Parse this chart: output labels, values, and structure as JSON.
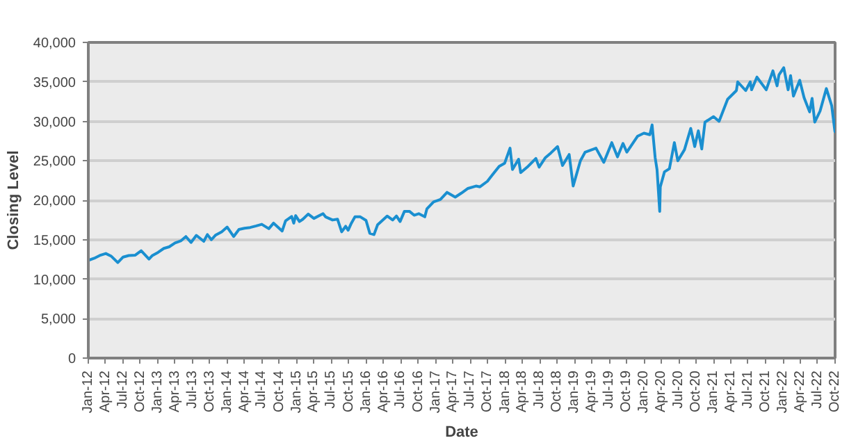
{
  "chart_data": {
    "type": "line",
    "xlabel": "Date",
    "ylabel": "Closing Level",
    "grid": "y",
    "marker": "none",
    "line_style": "solid",
    "xlim": [
      "2012-01-01",
      "2022-10-01"
    ],
    "ylim": [
      0,
      40000
    ],
    "yticks": [
      0,
      {
        "value": 5000,
        "label": "5,000"
      },
      {
        "value": 10000,
        "label": "10,000"
      },
      {
        "value": 15000,
        "label": "15,000"
      },
      {
        "value": 20000,
        "label": "20,000"
      },
      {
        "value": 25000,
        "label": "25,000"
      },
      {
        "value": 30000,
        "label": "30,000"
      },
      {
        "value": 35000,
        "label": "35,000"
      },
      {
        "value": 40000,
        "label": "40,000"
      }
    ],
    "xticks": [
      {
        "value": "2012-01-01",
        "label": "Jan-12"
      },
      {
        "value": "2012-04-01",
        "label": "Apr-12"
      },
      {
        "value": "2012-07-01",
        "label": "Jul-12"
      },
      {
        "value": "2012-10-01",
        "label": "Oct-12"
      },
      {
        "value": "2013-01-01",
        "label": "Jan-13"
      },
      {
        "value": "2013-04-01",
        "label": "Apr-13"
      },
      {
        "value": "2013-07-01",
        "label": "Jul-13"
      },
      {
        "value": "2013-10-01",
        "label": "Oct-13"
      },
      {
        "value": "2014-01-01",
        "label": "Jan-14"
      },
      {
        "value": "2014-04-01",
        "label": "Apr-14"
      },
      {
        "value": "2014-07-01",
        "label": "Jul-14"
      },
      {
        "value": "2014-10-01",
        "label": "Oct-14"
      },
      {
        "value": "2015-01-01",
        "label": "Jan-15"
      },
      {
        "value": "2015-04-01",
        "label": "Apr-15"
      },
      {
        "value": "2015-07-01",
        "label": "Jul-15"
      },
      {
        "value": "2015-10-01",
        "label": "Oct-15"
      },
      {
        "value": "2016-01-01",
        "label": "Jan-16"
      },
      {
        "value": "2016-04-01",
        "label": "Apr-16"
      },
      {
        "value": "2016-07-01",
        "label": "Jul-16"
      },
      {
        "value": "2016-10-01",
        "label": "Oct-16"
      },
      {
        "value": "2017-01-01",
        "label": "Jan-17"
      },
      {
        "value": "2017-04-01",
        "label": "Apr-17"
      },
      {
        "value": "2017-07-01",
        "label": "Jul-17"
      },
      {
        "value": "2017-10-01",
        "label": "Oct-17"
      },
      {
        "value": "2018-01-01",
        "label": "Jan-18"
      },
      {
        "value": "2018-04-01",
        "label": "Apr-18"
      },
      {
        "value": "2018-07-01",
        "label": "Jul-18"
      },
      {
        "value": "2018-10-01",
        "label": "Oct-18"
      },
      {
        "value": "2019-01-01",
        "label": "Jan-19"
      },
      {
        "value": "2019-04-01",
        "label": "Apr-19"
      },
      {
        "value": "2019-07-01",
        "label": "Jul-19"
      },
      {
        "value": "2019-10-01",
        "label": "Oct-19"
      },
      {
        "value": "2020-01-01",
        "label": "Jan-20"
      },
      {
        "value": "2020-04-01",
        "label": "Apr-20"
      },
      {
        "value": "2020-07-01",
        "label": "Jul-20"
      },
      {
        "value": "2020-10-01",
        "label": "Oct-20"
      },
      {
        "value": "2021-01-01",
        "label": "Jan-21"
      },
      {
        "value": "2021-04-01",
        "label": "Apr-21"
      },
      {
        "value": "2021-07-01",
        "label": "Jul-21"
      },
      {
        "value": "2021-10-01",
        "label": "Oct-21"
      },
      {
        "value": "2022-01-01",
        "label": "Jan-22"
      },
      {
        "value": "2022-04-01",
        "label": "Apr-22"
      },
      {
        "value": "2022-07-01",
        "label": "Jul-22"
      },
      {
        "value": "2022-10-01",
        "label": "Oct-22"
      }
    ],
    "series": [
      {
        "color": "#1a8fd0",
        "x": [
          "2012-01-03",
          "2012-02-01",
          "2012-03-01",
          "2012-04-02",
          "2012-05-01",
          "2012-06-04",
          "2012-07-02",
          "2012-08-01",
          "2012-09-04",
          "2012-10-05",
          "2012-11-15",
          "2012-12-03",
          "2013-01-02",
          "2013-02-01",
          "2013-03-01",
          "2013-04-01",
          "2013-05-01",
          "2013-05-28",
          "2013-06-24",
          "2013-07-22",
          "2013-08-30",
          "2013-09-18",
          "2013-10-09",
          "2013-11-01",
          "2013-12-02",
          "2013-12-31",
          "2014-02-03",
          "2014-03-03",
          "2014-04-01",
          "2014-05-01",
          "2014-06-02",
          "2014-07-01",
          "2014-08-07",
          "2014-09-01",
          "2014-10-16",
          "2014-11-03",
          "2014-12-05",
          "2014-12-16",
          "2014-12-26",
          "2015-01-15",
          "2015-02-02",
          "2015-03-02",
          "2015-04-01",
          "2015-05-19",
          "2015-06-01",
          "2015-07-08",
          "2015-08-03",
          "2015-08-25",
          "2015-09-15",
          "2015-09-28",
          "2015-10-15",
          "2015-11-03",
          "2015-12-01",
          "2015-12-31",
          "2016-01-20",
          "2016-02-11",
          "2016-03-01",
          "2016-04-20",
          "2016-05-19",
          "2016-06-08",
          "2016-06-27",
          "2016-07-20",
          "2016-08-15",
          "2016-09-09",
          "2016-10-03",
          "2016-11-04",
          "2016-11-15",
          "2016-12-20",
          "2017-01-25",
          "2017-03-01",
          "2017-04-13",
          "2017-05-15",
          "2017-06-19",
          "2017-07-31",
          "2017-08-21",
          "2017-09-29",
          "2017-10-31",
          "2017-11-30",
          "2017-12-29",
          "2018-01-26",
          "2018-02-08",
          "2018-03-12",
          "2018-03-23",
          "2018-05-01",
          "2018-06-11",
          "2018-06-28",
          "2018-07-31",
          "2018-08-29",
          "2018-10-03",
          "2018-10-29",
          "2018-12-03",
          "2018-12-24",
          "2019-01-31",
          "2019-02-25",
          "2019-04-23",
          "2019-06-03",
          "2019-07-15",
          "2019-08-14",
          "2019-09-12",
          "2019-10-02",
          "2019-11-27",
          "2019-12-31",
          "2020-01-31",
          "2020-02-12",
          "2020-02-28",
          "2020-03-09",
          "2020-03-23",
          "2020-03-26",
          "2020-04-17",
          "2020-05-13",
          "2020-06-08",
          "2020-06-26",
          "2020-07-31",
          "2020-09-02",
          "2020-09-23",
          "2020-10-12",
          "2020-10-30",
          "2020-11-16",
          "2020-12-31",
          "2021-01-29",
          "2021-03-15",
          "2021-04-30",
          "2021-05-07",
          "2021-06-18",
          "2021-07-12",
          "2021-07-19",
          "2021-08-16",
          "2021-10-04",
          "2021-11-08",
          "2021-11-30",
          "2021-12-10",
          "2022-01-04",
          "2022-01-27",
          "2022-02-09",
          "2022-02-24",
          "2022-03-29",
          "2022-04-21",
          "2022-05-20",
          "2022-06-02",
          "2022-06-16",
          "2022-07-14",
          "2022-08-16",
          "2022-09-13",
          "2022-09-30",
          "2022-10-01"
        ],
        "values": [
          12400,
          12650,
          13000,
          13250,
          12900,
          12100,
          12800,
          13000,
          13050,
          13600,
          12550,
          13000,
          13400,
          13900,
          14100,
          14600,
          14850,
          15400,
          14650,
          15550,
          14800,
          15650,
          15000,
          15600,
          16000,
          16600,
          15400,
          16300,
          16450,
          16550,
          16750,
          16950,
          16400,
          17100,
          16100,
          17400,
          17950,
          17100,
          18050,
          17300,
          17600,
          18250,
          17700,
          18300,
          17900,
          17500,
          17600,
          16000,
          16700,
          16200,
          17100,
          17900,
          17900,
          17450,
          15800,
          15650,
          16900,
          18000,
          17500,
          18000,
          17300,
          18600,
          18600,
          18100,
          18300,
          17900,
          18900,
          19800,
          20100,
          21000,
          20400,
          20900,
          21500,
          21800,
          21700,
          22400,
          23400,
          24300,
          24700,
          26600,
          23900,
          25200,
          23500,
          24300,
          25300,
          24200,
          25400,
          26000,
          26800,
          24400,
          25800,
          21800,
          25000,
          26100,
          26600,
          24800,
          27300,
          25500,
          27200,
          26100,
          28100,
          28500,
          28300,
          29550,
          25400,
          23850,
          18600,
          21700,
          23600,
          24000,
          27300,
          25000,
          26400,
          29100,
          26800,
          28800,
          26500,
          29900,
          30600,
          30000,
          32800,
          33900,
          35000,
          33900,
          35000,
          34000,
          35600,
          34000,
          36400,
          34500,
          35900,
          36800,
          34000,
          35800,
          33200,
          35200,
          33000,
          31200,
          32900,
          29900,
          31300,
          34150,
          32000,
          28700,
          30300
        ]
      }
    ]
  }
}
